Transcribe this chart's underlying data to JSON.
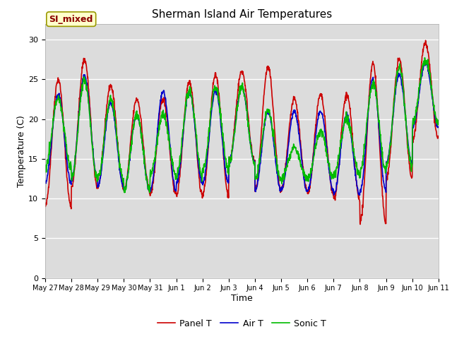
{
  "title": "Sherman Island Air Temperatures",
  "xlabel": "Time",
  "ylabel": "Temperature (C)",
  "ylim": [
    0,
    32
  ],
  "yticks": [
    0,
    5,
    10,
    15,
    20,
    25,
    30
  ],
  "legend_labels": [
    "Panel T",
    "Air T",
    "Sonic T"
  ],
  "legend_colors": [
    "#cc0000",
    "#0000cc",
    "#00bb00"
  ],
  "annotation_text": "SI_mixed",
  "annotation_color": "#8b0000",
  "annotation_bg": "#ffffcc",
  "bg_color": "#dcdcdc",
  "fig_bg": "#ffffff",
  "tick_labels": [
    "May 27",
    "May 28",
    "May 29",
    "May 30",
    "May 31",
    "Jun 1",
    "Jun 2",
    "Jun 3",
    "Jun 4",
    "Jun 5",
    "Jun 6",
    "Jun 7",
    "Jun 8",
    "Jun 9",
    "Jun 10",
    "Jun 11"
  ],
  "n_days": 15,
  "pts_per_day": 96,
  "panel_peaks": [
    25.0,
    27.5,
    24.2,
    22.5,
    22.5,
    24.8,
    25.5,
    26.0,
    26.5,
    22.5,
    23.0,
    23.0,
    27.0,
    27.5,
    29.5
  ],
  "panel_troughs": [
    9.0,
    11.5,
    11.5,
    11.0,
    10.5,
    10.5,
    10.5,
    14.5,
    11.0,
    11.0,
    10.5,
    10.0,
    7.0,
    12.5,
    17.5
  ],
  "air_peaks": [
    23.0,
    25.5,
    22.0,
    20.5,
    23.5,
    23.5,
    23.5,
    24.0,
    21.0,
    21.0,
    21.0,
    20.5,
    25.0,
    25.5,
    27.0
  ],
  "air_troughs": [
    12.0,
    12.5,
    11.5,
    11.0,
    11.0,
    12.0,
    12.0,
    14.5,
    11.0,
    11.0,
    11.0,
    10.5,
    11.0,
    14.5,
    19.0
  ],
  "sonic_peaks": [
    22.5,
    25.0,
    22.5,
    20.5,
    20.5,
    23.5,
    24.0,
    24.0,
    21.0,
    16.5,
    18.5,
    20.0,
    24.5,
    26.5,
    27.5
  ],
  "sonic_troughs": [
    14.0,
    12.5,
    12.5,
    11.0,
    13.0,
    13.0,
    13.5,
    14.5,
    12.5,
    12.5,
    12.5,
    13.0,
    13.5,
    14.0,
    19.5
  ]
}
